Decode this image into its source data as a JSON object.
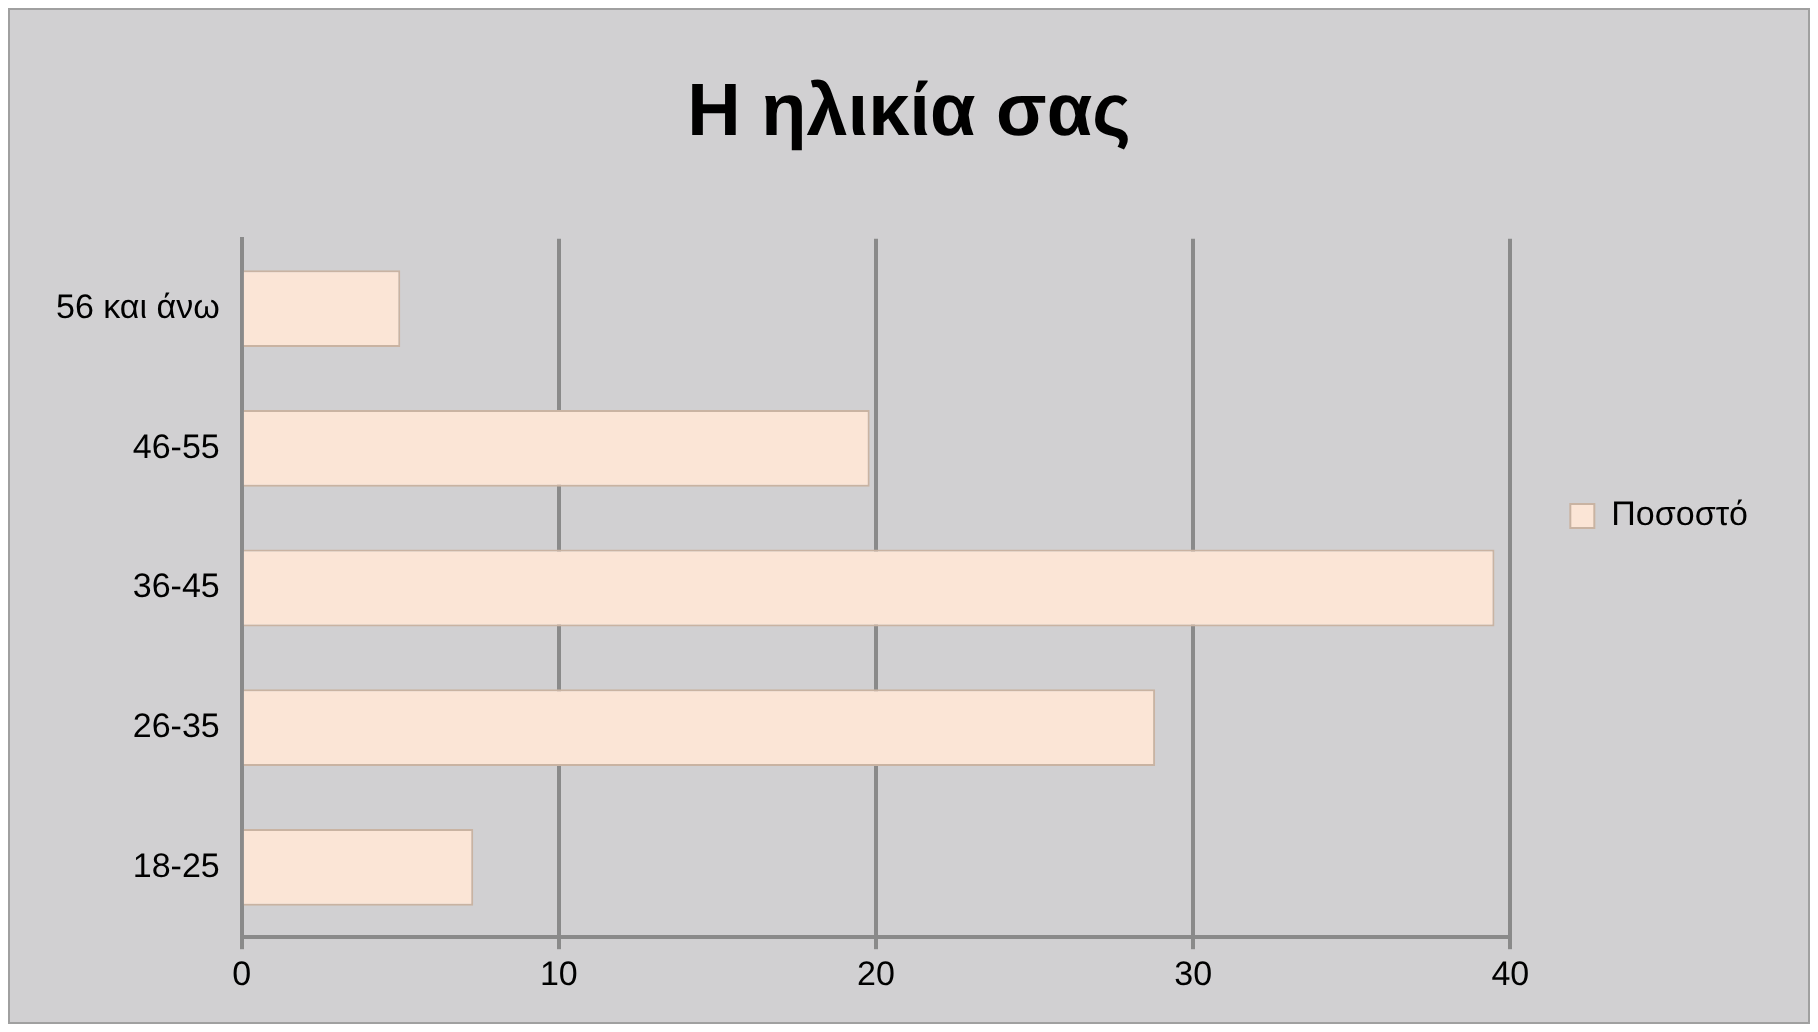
{
  "chart_data": {
    "type": "bar",
    "orientation": "horizontal",
    "title": "Η ηλικία σας",
    "categories": [
      "56 και άνω",
      "46-55",
      "36-45",
      "26-35",
      "18-25"
    ],
    "series": [
      {
        "name": "Ποσοστό",
        "color": "#fbe5d6",
        "values": [
          5.0,
          19.8,
          39.5,
          28.8,
          7.3
        ]
      }
    ],
    "xlim": [
      0,
      40
    ],
    "xticks": [
      0,
      10,
      20,
      30,
      40
    ],
    "grid": "x",
    "legend": "right"
  }
}
